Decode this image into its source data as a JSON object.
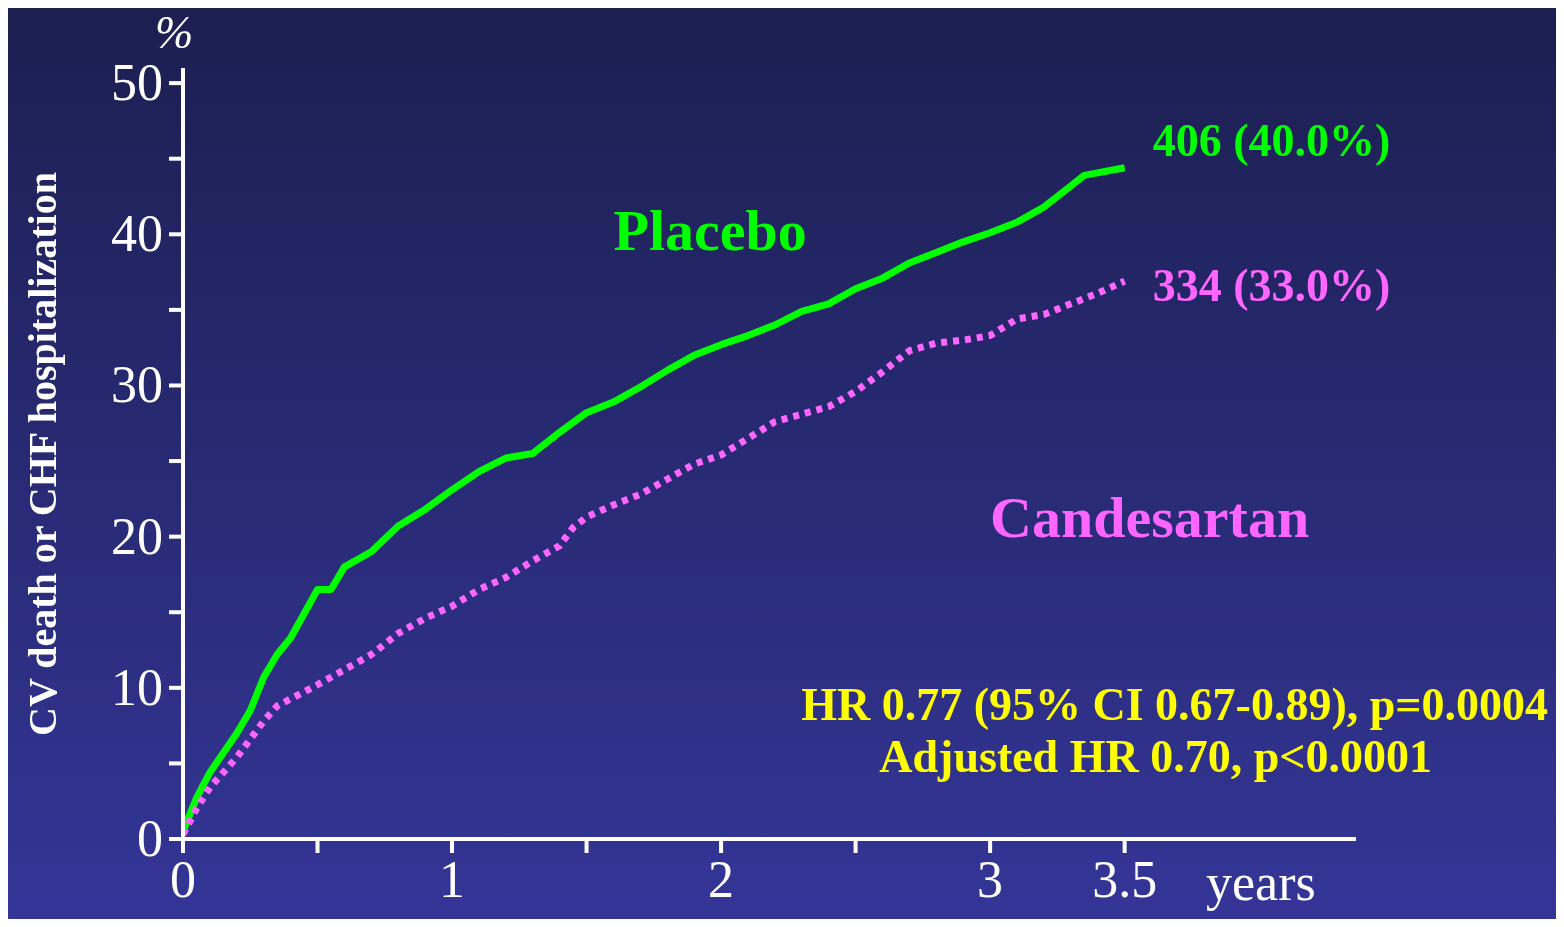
{
  "chart_data": {
    "type": "line",
    "ylabel": "CV death or CHF hospitalization",
    "xlabel": "years",
    "xlim": [
      0,
      4.36
    ],
    "ylim": [
      0,
      51
    ],
    "xticks": [
      0,
      {
        "value": 0.5,
        "label": null
      },
      1,
      {
        "value": 1.5,
        "label": null
      },
      2,
      {
        "value": 2.5,
        "label": null
      },
      3,
      3.5
    ],
    "yticks": [
      0,
      {
        "value": 5,
        "label": null
      },
      10,
      {
        "value": 15,
        "label": null
      },
      20,
      {
        "value": 25,
        "label": null
      },
      30,
      {
        "value": 35,
        "label": null
      },
      40,
      {
        "value": 45,
        "label": null
      },
      50
    ],
    "marker": "none",
    "x": [
      0,
      0.05,
      0.1,
      0.2,
      0.25,
      0.3,
      0.35,
      0.4,
      0.5,
      0.55,
      0.6,
      0.7,
      0.8,
      0.9,
      1.0,
      1.1,
      1.2,
      1.3,
      1.4,
      1.5,
      1.6,
      1.7,
      1.8,
      1.9,
      2.0,
      2.1,
      2.2,
      2.3,
      2.4,
      2.5,
      2.6,
      2.7,
      2.8,
      2.9,
      3.0,
      3.1,
      3.2,
      3.3,
      3.35,
      3.5
    ],
    "series": [
      {
        "name": "Placebo",
        "color": "#00ff00",
        "line_style": "solid",
        "values": [
          0.5,
          2.7,
          4.4,
          7.0,
          8.5,
          10.7,
          12.2,
          13.3,
          16.5,
          16.5,
          18.0,
          19.0,
          20.7,
          21.8,
          23.1,
          24.3,
          25.2,
          25.5,
          26.9,
          28.2,
          28.9,
          29.9,
          31.0,
          32.0,
          32.7,
          33.3,
          34.0,
          34.9,
          35.4,
          36.4,
          37.1,
          38.1,
          38.8,
          39.5,
          40.1,
          40.8,
          41.8,
          43.2,
          43.9,
          44.4
        ]
      },
      {
        "name": "Candesartan",
        "color": "#ff66ff",
        "line_style": "dotted",
        "x": [
          0,
          0.05,
          0.1,
          0.2,
          0.3,
          0.35,
          0.5,
          0.6,
          0.7,
          0.8,
          0.9,
          1.0,
          1.1,
          1.2,
          1.3,
          1.4,
          1.45,
          1.5,
          1.6,
          1.7,
          1.8,
          1.9,
          2.0,
          2.1,
          2.2,
          2.3,
          2.4,
          2.5,
          2.6,
          2.7,
          2.8,
          2.9,
          3.0,
          3.1,
          3.2,
          3.3,
          3.4,
          3.5
        ],
        "values": [
          0.3,
          2.0,
          3.4,
          5.4,
          7.8,
          8.8,
          10.2,
          11.2,
          12.2,
          13.6,
          14.6,
          15.4,
          16.5,
          17.3,
          18.4,
          19.4,
          20.6,
          21.3,
          22.1,
          22.8,
          23.8,
          24.8,
          25.4,
          26.5,
          27.6,
          28.1,
          28.6,
          29.6,
          30.9,
          32.3,
          32.8,
          33.0,
          33.3,
          34.4,
          34.7,
          35.4,
          36.1,
          36.9
        ]
      }
    ],
    "annotations": [
      "%",
      {
        "text": "406 (40.0%)",
        "x": 3.5,
        "y": 44.4
      },
      {
        "text": "334 (33.0%)",
        "x": 3.5,
        "y": 36.9
      },
      "HR 0.77 (95% CI 0.67-0.89), p=0.0004",
      "Adjusted HR 0.70, p<0.0001"
    ]
  }
}
